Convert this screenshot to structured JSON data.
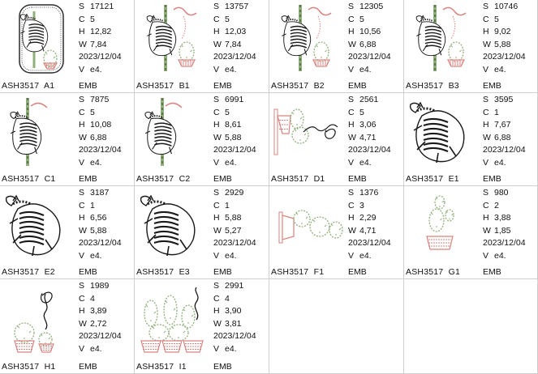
{
  "designs": [
    {
      "name": "ASH3517  A1",
      "stitches": "17121",
      "colors": "5",
      "height": "12,82",
      "width": "7,84",
      "date": "2023/12/04",
      "version": "e4.",
      "format": "EMB",
      "thumb": "zebra-frame"
    },
    {
      "name": "ASH3517  B1",
      "stitches": "13757",
      "colors": "5",
      "height": "12,03",
      "width": "7,84",
      "date": "2023/12/04",
      "version": "e4.",
      "format": "EMB",
      "thumb": "zebra-pole-cactus"
    },
    {
      "name": "ASH3517  B2",
      "stitches": "12305",
      "colors": "5",
      "height": "10,56",
      "width": "6,88",
      "date": "2023/12/04",
      "version": "e4.",
      "format": "EMB",
      "thumb": "zebra-pole-cactus"
    },
    {
      "name": "ASH3517  B3",
      "stitches": "10746",
      "colors": "5",
      "height": "9,02",
      "width": "5,88",
      "date": "2023/12/04",
      "version": "e4.",
      "format": "EMB",
      "thumb": "zebra-pole-cactus"
    },
    {
      "name": "ASH3517  C1",
      "stitches": "7875",
      "colors": "5",
      "height": "10,08",
      "width": "6,88",
      "date": "2023/12/04",
      "version": "e4.",
      "format": "EMB",
      "thumb": "zebra-pole"
    },
    {
      "name": "ASH3517  C2",
      "stitches": "6991",
      "colors": "5",
      "height": "8,61",
      "width": "5,88",
      "date": "2023/12/04",
      "version": "e4.",
      "format": "EMB",
      "thumb": "zebra-pole"
    },
    {
      "name": "ASH3517  D1",
      "stitches": "2561",
      "colors": "5",
      "height": "3,06",
      "width": "4,71",
      "date": "2023/12/04",
      "version": "e4.",
      "format": "EMB",
      "thumb": "cactus-side-swirl"
    },
    {
      "name": "ASH3517  E1",
      "stitches": "3595",
      "colors": "1",
      "height": "7,67",
      "width": "6,88",
      "date": "2023/12/04",
      "version": "e4.",
      "format": "EMB",
      "thumb": "zebra-jump"
    },
    {
      "name": "ASH3517  E2",
      "stitches": "3187",
      "colors": "1",
      "height": "6,56",
      "width": "5,88",
      "date": "2023/12/04",
      "version": "e4.",
      "format": "EMB",
      "thumb": "zebra-jump"
    },
    {
      "name": "ASH3517  E3",
      "stitches": "2929",
      "colors": "1",
      "height": "5,88",
      "width": "5,27",
      "date": "2023/12/04",
      "version": "e4.",
      "format": "EMB",
      "thumb": "zebra-jump"
    },
    {
      "name": "ASH3517  F1",
      "stitches": "1376",
      "colors": "3",
      "height": "2,29",
      "width": "4,71",
      "date": "2023/12/04",
      "version": "e4.",
      "format": "EMB",
      "thumb": "cactus-side"
    },
    {
      "name": "ASH3517  G1",
      "stitches": "980",
      "colors": "2",
      "height": "3,88",
      "width": "1,85",
      "date": "2023/12/04",
      "version": "e4.",
      "format": "EMB",
      "thumb": "cactus-tall-pot"
    },
    {
      "name": "ASH3517  H1",
      "stitches": "1989",
      "colors": "4",
      "height": "3,89",
      "width": "2,72",
      "date": "2023/12/04",
      "version": "e4.",
      "format": "EMB",
      "thumb": "cactus-pots-swirl"
    },
    {
      "name": "ASH3517  I1",
      "stitches": "2991",
      "colors": "4",
      "height": "3,90",
      "width": "3,81",
      "date": "2023/12/04",
      "version": "e4.",
      "format": "EMB",
      "thumb": "cactus-pots-three"
    }
  ],
  "labels": {
    "stitches": "S",
    "colors": "C",
    "height": "H",
    "width": "W",
    "version": "V"
  },
  "palette": {
    "green": "#8fb07a",
    "pink": "#d9837f",
    "dark": "#1a1a1a",
    "frame": "#2c2c2c"
  }
}
